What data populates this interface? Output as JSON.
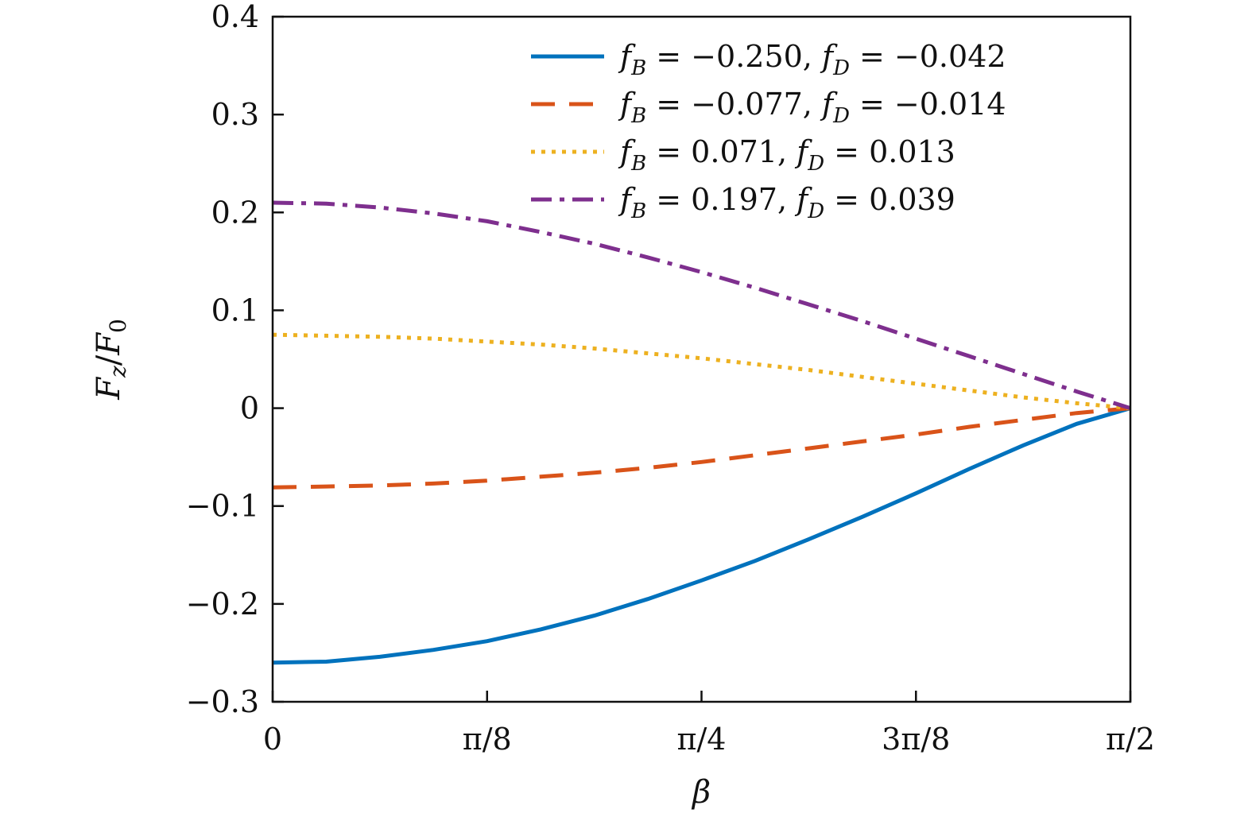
{
  "chart_data": {
    "type": "line",
    "title": "",
    "xlabel": "β",
    "ylabel": "Fz/F0",
    "ylabel_parts": {
      "main": "F",
      "sub": "z",
      "slash": "/",
      "main2": "F",
      "sub2": "0"
    },
    "xlim": [
      0,
      1.5708
    ],
    "ylim": [
      -0.3,
      0.4
    ],
    "x_ticks": [
      {
        "value": 0,
        "label": "0"
      },
      {
        "value": 0.3927,
        "label": "π/8"
      },
      {
        "value": 0.7854,
        "label": "π/4"
      },
      {
        "value": 1.1781,
        "label": "3π/8"
      },
      {
        "value": 1.5708,
        "label": "π/2"
      }
    ],
    "y_ticks": [
      {
        "value": 0.4,
        "label": "0.4"
      },
      {
        "value": 0.3,
        "label": "0.3"
      },
      {
        "value": 0.2,
        "label": "0.2"
      },
      {
        "value": 0.1,
        "label": "0.1"
      },
      {
        "value": 0,
        "label": "0"
      },
      {
        "value": -0.1,
        "label": "−0.1"
      },
      {
        "value": -0.2,
        "label": "−0.2"
      },
      {
        "value": -0.3,
        "label": "−0.3"
      }
    ],
    "grid": false,
    "legend_position": "top-right",
    "series": [
      {
        "name": "fB = −0.250, fD = −0.042",
        "fB": "−0.250",
        "fD": "−0.042",
        "color": "#0072bd",
        "style": "solid",
        "x": [
          0,
          0.0982,
          0.1963,
          0.2945,
          0.3927,
          0.4909,
          0.589,
          0.6872,
          0.7854,
          0.8836,
          0.9817,
          1.0799,
          1.1781,
          1.2763,
          1.3744,
          1.4726,
          1.5708
        ],
        "y": [
          -0.26,
          -0.259,
          -0.254,
          -0.247,
          -0.238,
          -0.226,
          -0.212,
          -0.195,
          -0.176,
          -0.156,
          -0.134,
          -0.111,
          -0.087,
          -0.062,
          -0.038,
          -0.016,
          0.0
        ]
      },
      {
        "name": "fB = −0.077, fD = −0.014",
        "fB": "−0.077",
        "fD": "−0.014",
        "color": "#d95319",
        "style": "dashed",
        "x": [
          0,
          0.0982,
          0.1963,
          0.2945,
          0.3927,
          0.4909,
          0.589,
          0.6872,
          0.7854,
          0.8836,
          0.9817,
          1.0799,
          1.1781,
          1.2763,
          1.3744,
          1.4726,
          1.5708
        ],
        "y": [
          -0.081,
          -0.08,
          -0.079,
          -0.077,
          -0.074,
          -0.07,
          -0.066,
          -0.061,
          -0.055,
          -0.048,
          -0.041,
          -0.034,
          -0.027,
          -0.019,
          -0.012,
          -0.005,
          0.0
        ]
      },
      {
        "name": "fB = 0.071, fD = 0.013",
        "fB": "0.071",
        "fD": "0.013",
        "color": "#edb120",
        "style": "dotted",
        "x": [
          0,
          0.0982,
          0.1963,
          0.2945,
          0.3927,
          0.4909,
          0.589,
          0.6872,
          0.7854,
          0.8836,
          0.9817,
          1.0799,
          1.1781,
          1.2763,
          1.3744,
          1.4726,
          1.5708
        ],
        "y": [
          0.075,
          0.074,
          0.073,
          0.071,
          0.068,
          0.065,
          0.061,
          0.056,
          0.051,
          0.045,
          0.039,
          0.032,
          0.025,
          0.018,
          0.011,
          0.005,
          0.0
        ]
      },
      {
        "name": "fB = 0.197, fD = 0.039",
        "fB": "0.197",
        "fD": "0.039",
        "color": "#7e2f8e",
        "style": "dashdot",
        "x": [
          0,
          0.0982,
          0.1963,
          0.2945,
          0.3927,
          0.4909,
          0.589,
          0.6872,
          0.7854,
          0.8836,
          0.9817,
          1.0799,
          1.1781,
          1.2763,
          1.3744,
          1.4726,
          1.5708
        ],
        "y": [
          0.21,
          0.209,
          0.205,
          0.199,
          0.191,
          0.18,
          0.168,
          0.154,
          0.139,
          0.123,
          0.106,
          0.089,
          0.071,
          0.053,
          0.035,
          0.017,
          0.0
        ]
      }
    ]
  }
}
